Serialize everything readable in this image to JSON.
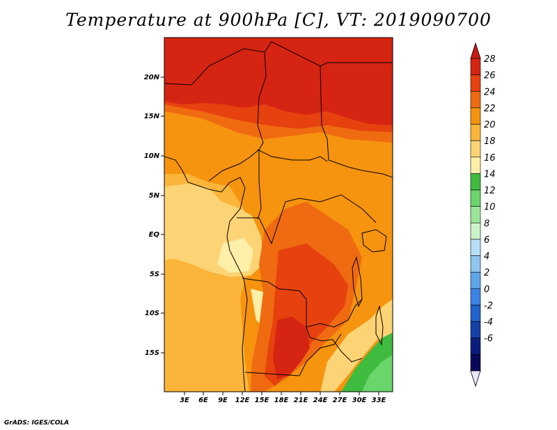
{
  "title": "Temperature at 900hPa [C], VT: 2019090700",
  "footer": "GrADS: IGES/COLA",
  "map": {
    "lat_ticks": [
      "20N",
      "15N",
      "10N",
      "5N",
      "EQ",
      "5S",
      "10S",
      "15S"
    ],
    "lon_ticks": [
      "3E",
      "6E",
      "9E",
      "12E",
      "15E",
      "18E",
      "21E",
      "24E",
      "27E",
      "30E",
      "33E"
    ]
  },
  "colorbar": {
    "labels": [
      "28",
      "26",
      "24",
      "22",
      "20",
      "18",
      "16",
      "14",
      "12",
      "10",
      "8",
      "6",
      "4",
      "2",
      "0",
      "-2",
      "-4",
      "-6"
    ],
    "colors": [
      "#d62412",
      "#e6410f",
      "#ef6a10",
      "#f6930f",
      "#fab53a",
      "#fdd475",
      "#fdeea8",
      "#3fbb3f",
      "#6ad56a",
      "#9ae699",
      "#cbf3c8",
      "#b8def7",
      "#8ec6f2",
      "#5ea6ec",
      "#3b83e4",
      "#2163cf",
      "#1241a8",
      "#0b1d7c",
      "#07095a"
    ],
    "top_arrow_color": "#c81c10",
    "bottom_arrow_color": "#e6e6f8"
  }
}
